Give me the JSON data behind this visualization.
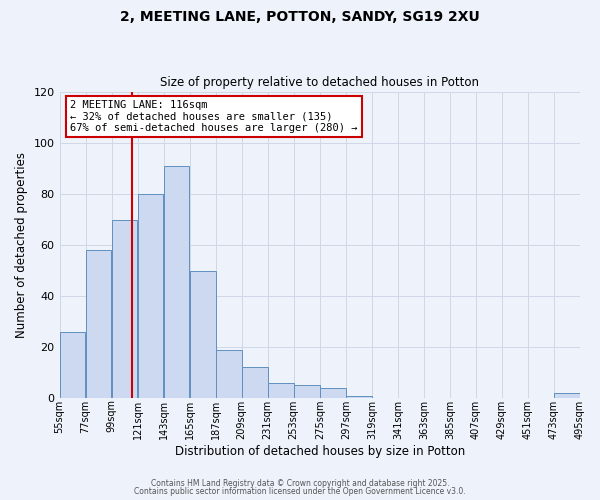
{
  "title": "2, MEETING LANE, POTTON, SANDY, SG19 2XU",
  "subtitle": "Size of property relative to detached houses in Potton",
  "xlabel": "Distribution of detached houses by size in Potton",
  "ylabel": "Number of detached properties",
  "bar_color": "#ccd9f0",
  "bar_edge_color": "#6090c0",
  "background_color": "#eef2fb",
  "grid_color": "#d0d8e8",
  "bin_edges": [
    55,
    77,
    99,
    121,
    143,
    165,
    187,
    209,
    231,
    253,
    275,
    297,
    319,
    341,
    363,
    385,
    407,
    429,
    451,
    473,
    495
  ],
  "bin_labels": [
    "55sqm",
    "77sqm",
    "99sqm",
    "121sqm",
    "143sqm",
    "165sqm",
    "187sqm",
    "209sqm",
    "231sqm",
    "253sqm",
    "275sqm",
    "297sqm",
    "319sqm",
    "341sqm",
    "363sqm",
    "385sqm",
    "407sqm",
    "429sqm",
    "451sqm",
    "473sqm",
    "495sqm"
  ],
  "bar_heights": [
    26,
    58,
    70,
    80,
    91,
    50,
    19,
    12,
    6,
    5,
    4,
    1,
    0,
    0,
    0,
    0,
    0,
    0,
    0,
    2
  ],
  "vline_x": 116,
  "vline_color": "#cc0000",
  "ylim": [
    0,
    120
  ],
  "yticks": [
    0,
    20,
    40,
    60,
    80,
    100,
    120
  ],
  "annotation_title": "2 MEETING LANE: 116sqm",
  "annotation_line1": "← 32% of detached houses are smaller (135)",
  "annotation_line2": "67% of semi-detached houses are larger (280) →",
  "footer1": "Contains HM Land Registry data © Crown copyright and database right 2025.",
  "footer2": "Contains public sector information licensed under the Open Government Licence v3.0."
}
